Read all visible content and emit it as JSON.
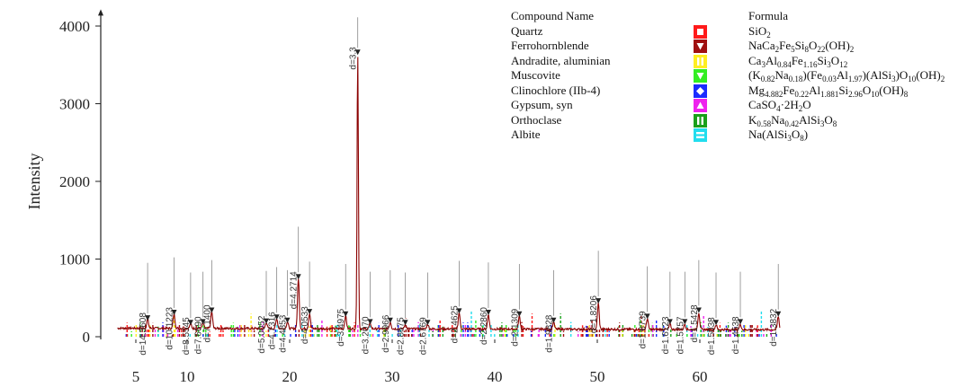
{
  "chart_data": {
    "type": "line",
    "title": "",
    "xlabel": "",
    "ylabel": "Intensity",
    "xlim": [
      3,
      68
    ],
    "ylim": [
      0,
      4100
    ],
    "x_ticks": [
      "5",
      "10",
      "20",
      "30",
      "40",
      "50",
      "60"
    ],
    "x_tick_values": [
      5,
      10,
      20,
      30,
      40,
      50,
      60
    ],
    "y_ticks": [
      "0",
      "1000",
      "2000",
      "3000",
      "4000"
    ],
    "y_tick_values": [
      0,
      1000,
      2000,
      3000,
      4000
    ],
    "grid": false,
    "baseline": 110,
    "main_color": "#8b0000",
    "peaks": [
      {
        "x": 6.15,
        "y": 230,
        "label": "d=14.3608"
      },
      {
        "x": 8.73,
        "y": 300,
        "label": "d=10.1223"
      },
      {
        "x": 10.34,
        "y": 170,
        "label": "d=8.5545"
      },
      {
        "x": 11.55,
        "y": 180,
        "label": "d=7.6690"
      },
      {
        "x": 12.4,
        "y": 330,
        "label": "d=7.1400"
      },
      {
        "x": 17.72,
        "y": 190,
        "label": "d=5.0052"
      },
      {
        "x": 18.74,
        "y": 240,
        "label": "d=4.7316"
      },
      {
        "x": 19.78,
        "y": 200,
        "label": "d=4.4853"
      },
      {
        "x": 20.85,
        "y": 760,
        "label": "d=4.2714"
      },
      {
        "x": 21.94,
        "y": 310,
        "label": "d=4.0533"
      },
      {
        "x": 25.46,
        "y": 280,
        "label": "d=3.4975"
      },
      {
        "x": 26.64,
        "y": 3650,
        "label": "d=3.3"
      },
      {
        "x": 27.85,
        "y": 180,
        "label": "d=3.2070"
      },
      {
        "x": 29.81,
        "y": 200,
        "label": "d=2.9966"
      },
      {
        "x": 31.28,
        "y": 170,
        "label": "d=2.8675"
      },
      {
        "x": 33.46,
        "y": 170,
        "label": "d=2.6769"
      },
      {
        "x": 36.53,
        "y": 320,
        "label": "d=2.4625"
      },
      {
        "x": 39.38,
        "y": 300,
        "label": "d=2.2860"
      },
      {
        "x": 42.4,
        "y": 280,
        "label": "d=2.1309"
      },
      {
        "x": 45.74,
        "y": 200,
        "label": "d=1.9828"
      },
      {
        "x": 50.1,
        "y": 450,
        "label": "d=1.8206"
      },
      {
        "x": 54.88,
        "y": 250,
        "label": "d=1.6739"
      },
      {
        "x": 57.09,
        "y": 180,
        "label": "d=1.6123"
      },
      {
        "x": 58.54,
        "y": 180,
        "label": "d=1.5757"
      },
      {
        "x": 59.9,
        "y": 330,
        "label": "d=1.5428"
      },
      {
        "x": 61.58,
        "y": 170,
        "label": "d=1.5038"
      },
      {
        "x": 63.95,
        "y": 180,
        "label": "d=1.4538"
      },
      {
        "x": 67.65,
        "y": 280,
        "label": "d=1.3832"
      }
    ],
    "legend": {
      "header_name": "Compound Name",
      "header_formula": "Formula",
      "entries": [
        {
          "name": "Quartz",
          "formula": "SiO<sub>2</sub>",
          "color": "#ff1a1a",
          "marker": "square"
        },
        {
          "name": "Ferrohornblende",
          "formula": "NaCa<sub>2</sub>Fe<sub>5</sub>Si<sub>8</sub>O<sub>22</sub>(OH)<sub>2</sub>",
          "color": "#a01010",
          "marker": "triangle-down"
        },
        {
          "name": "Andradite, aluminian",
          "formula": "Ca<sub>3</sub>Al<sub>0.84</sub>Fe<sub>1.16</sub>Si<sub>3</sub>O<sub>12</sub>",
          "color": "#ffee22",
          "marker": "double-vertical"
        },
        {
          "name": "Muscovite",
          "formula": "(K<sub>0.82</sub>Na<sub>0.18</sub>)(Fe<sub>0.03</sub>Al<sub>1.97</sub>)(AlSi<sub>3</sub>)O<sub>10</sub>(OH)<sub>2</sub>",
          "color": "#33ee22",
          "marker": "triangle-down"
        },
        {
          "name": "Clinochlore (IIb-4)",
          "formula": "Mg<sub>4.882</sub>Fe<sub>0.22</sub>Al<sub>1.881</sub>Si<sub>2.96</sub>O<sub>10</sub>(OH)<sub>8</sub>",
          "color": "#1a2aff",
          "marker": "diamond"
        },
        {
          "name": "Gypsum, syn",
          "formula": "CaSO<sub>4</sub>·2H<sub>2</sub>O",
          "color": "#ee22ee",
          "marker": "triangle-up"
        },
        {
          "name": "Orthoclase",
          "formula": "K<sub>0.58</sub>Na<sub>0.42</sub>AlSi<sub>3</sub>O<sub>8</sub>",
          "color": "#1aa01a",
          "marker": "double-vertical"
        },
        {
          "name": "Albite",
          "formula": "Na(AlSi<sub>3</sub>O<sub>8</sub>)",
          "color": "#22ddee",
          "marker": "double-horizontal"
        }
      ]
    }
  }
}
